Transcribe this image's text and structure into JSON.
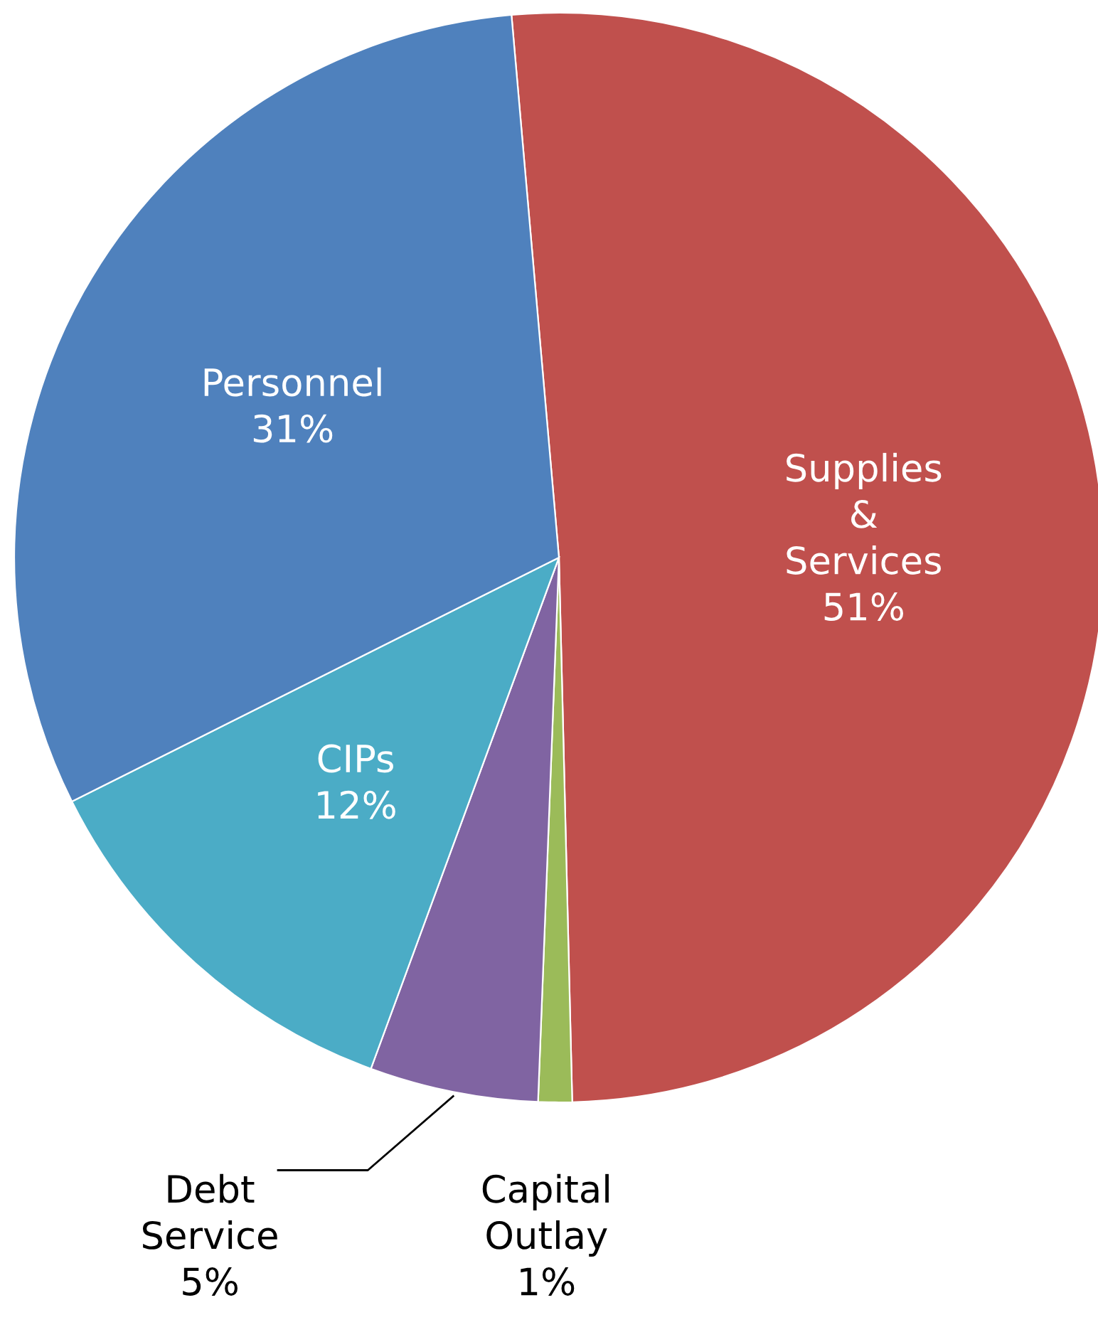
{
  "chart_data": {
    "type": "pie",
    "categories": [
      "Supplies\n&\nServices",
      "Capital\nOutlay",
      "Debt\nService",
      "CIPs",
      "Personnel"
    ],
    "values": [
      51,
      1,
      5,
      12,
      31
    ],
    "colors": [
      "#c0504d",
      "#9bbb59",
      "#8064a2",
      "#4bacc6",
      "#4f81bd"
    ],
    "value_labels": [
      "51%",
      "1%",
      "5%",
      "12%",
      "31%"
    ],
    "legend": false
  }
}
